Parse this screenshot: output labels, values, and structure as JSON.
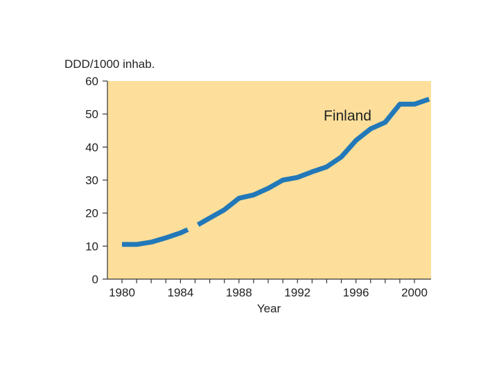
{
  "chart_data": {
    "type": "line",
    "ylabel": "DDD/1000 inhab.",
    "xlabel": "Year",
    "ylim": [
      0,
      60
    ],
    "xlim": [
      1980,
      2000
    ],
    "yticks": [
      0,
      10,
      20,
      30,
      40,
      50,
      60
    ],
    "xticks": [
      1980,
      1984,
      1988,
      1992,
      1996,
      2000
    ],
    "grid": false,
    "series": [
      {
        "name": "Finland",
        "segments": [
          {
            "x": [
              1980,
              1981,
              1982,
              1983,
              1984,
              1984.5
            ],
            "y": [
              10.5,
              10.5,
              11.2,
              12.5,
              14.0,
              15.0
            ]
          },
          {
            "x": [
              1985.2,
              1986,
              1987,
              1988,
              1989,
              1990,
              1991,
              1992,
              1993,
              1994,
              1995,
              1996,
              1997,
              1998,
              1999,
              2000,
              2001
            ],
            "y": [
              16.5,
              18.5,
              21.0,
              24.5,
              25.5,
              27.5,
              30.0,
              30.8,
              32.5,
              34.0,
              37.0,
              42.0,
              45.5,
              47.5,
              53.0,
              53.0,
              54.5
            ]
          }
        ]
      }
    ],
    "colors": {
      "plot_background": "#fddf9b",
      "line": "#2278b8",
      "axis": "#333333"
    }
  }
}
